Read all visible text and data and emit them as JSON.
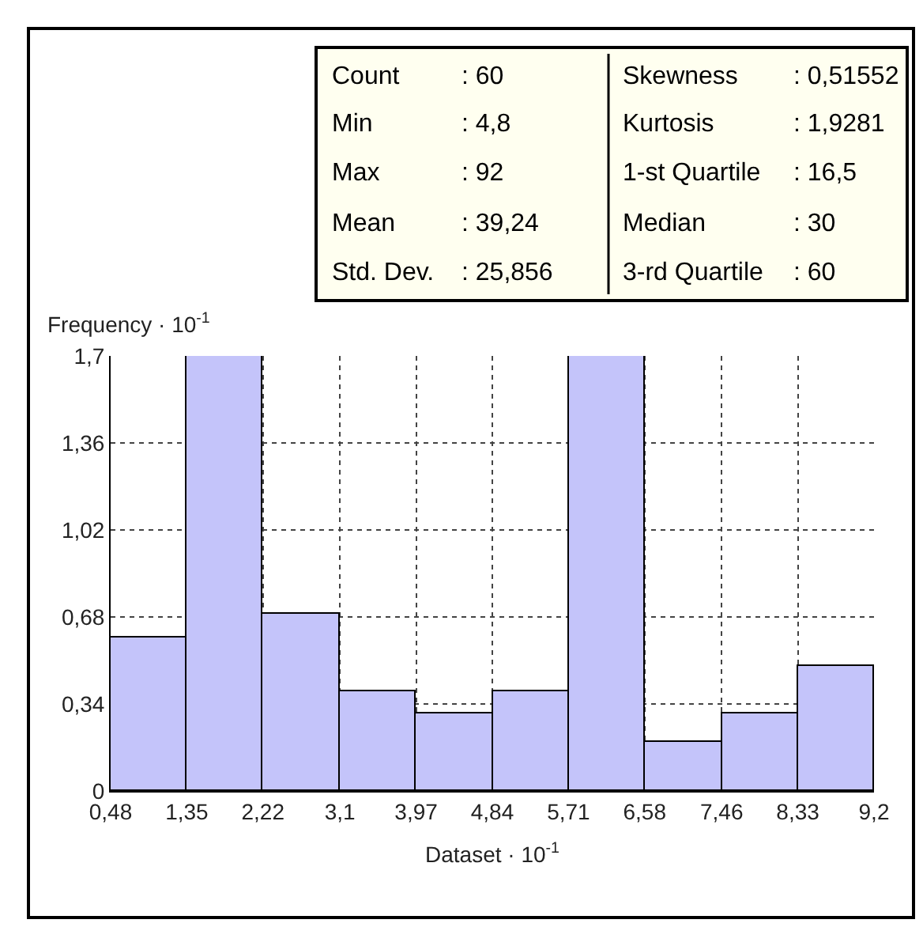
{
  "chart_data": {
    "type": "histogram",
    "xlabel": "Dataset · 10$^{-1}$",
    "ylabel": "Frequency · 10$^{-1}$",
    "bins": [
      0.48,
      1.35,
      2.22,
      3.1,
      3.97,
      4.84,
      5.71,
      6.58,
      7.46,
      8.33,
      9.2
    ],
    "values": [
      0.6,
      1.7,
      0.69,
      0.39,
      0.3,
      0.39,
      1.7,
      0.19,
      0.3,
      0.49
    ],
    "color": "#c4c4fa",
    "xlim": [
      0.48,
      9.2
    ],
    "xticks": [
      {
        "value": 0.48,
        "label": "0,48"
      },
      {
        "value": 1.35,
        "label": "1,35"
      },
      {
        "value": 2.22,
        "label": "2,22"
      },
      {
        "value": 3.1,
        "label": "3,1"
      },
      {
        "value": 3.97,
        "label": "3,97"
      },
      {
        "value": 4.84,
        "label": "4,84"
      },
      {
        "value": 5.71,
        "label": "5,71"
      },
      {
        "value": 6.58,
        "label": "6,58"
      },
      {
        "value": 7.46,
        "label": "7,46"
      },
      {
        "value": 8.33,
        "label": "8,33"
      },
      {
        "value": 9.2,
        "label": "9,2"
      }
    ],
    "ylim": [
      0,
      1.7
    ],
    "yticks": [
      0,
      {
        "value": 0.34,
        "label": "0,34"
      },
      {
        "value": 0.68,
        "label": "0,68"
      },
      {
        "value": 1.02,
        "label": "1,02"
      },
      {
        "value": 1.36,
        "label": "1,36"
      },
      {
        "value": 1.7,
        "label": "1,7"
      }
    ],
    "grid": true,
    "line_style": "dotted",
    "annotations": [
      "Count",
      ": 60",
      "Min",
      ": 4,8",
      "Max",
      ": 92",
      "Mean",
      ": 39,24",
      "Std. Dev.",
      ": 25,856",
      "Skewness",
      ": 0,51552",
      "Kurtosis",
      ": 1,9281",
      "1-st Quartile",
      ": 16,5",
      "Median",
      ": 30",
      "3-rd Quartile",
      ": 60"
    ]
  }
}
